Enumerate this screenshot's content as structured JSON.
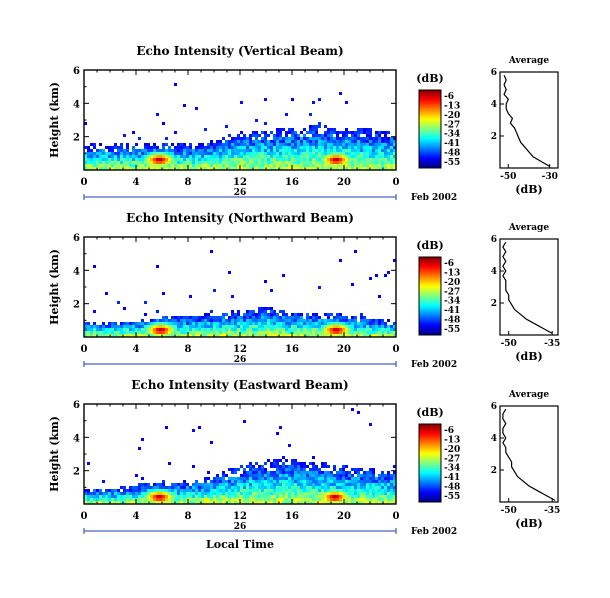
{
  "figure": {
    "xlabel": "Local Time",
    "date_label": "Feb 2002",
    "day_label": "26",
    "ylabel": "Height (km)"
  },
  "chart_data": [
    {
      "type": "heatmap",
      "title": "Echo Intensity (Vertical Beam)",
      "xlabel": "Local Time",
      "ylabel": "Height (km)",
      "x_ticks": [
        "0",
        "4",
        "8",
        "12",
        "16",
        "20",
        "0"
      ],
      "y_ticks": [
        "2",
        "4",
        "6"
      ],
      "xlim": [
        0,
        24
      ],
      "ylim": [
        0,
        6
      ],
      "colorbar": {
        "label": "(dB)",
        "ticks": [
          "-6",
          "-13",
          "-20",
          "-27",
          "-34",
          "-41",
          "-48",
          "-55"
        ],
        "range": [
          -55,
          -6
        ]
      },
      "echo_top_km": [
        [
          0,
          1.55
        ],
        [
          4,
          1.55
        ],
        [
          6,
          1.6
        ],
        [
          8,
          1.55
        ],
        [
          10,
          1.75
        ],
        [
          12,
          2.3
        ],
        [
          14,
          2.4
        ],
        [
          16,
          2.55
        ],
        [
          18,
          2.65
        ],
        [
          20,
          2.55
        ],
        [
          22,
          2.45
        ],
        [
          24,
          2.3
        ]
      ],
      "hot_spots": [
        {
          "time": 5.8,
          "height": 0.6,
          "dB": -6
        },
        {
          "time": 19.4,
          "height": 0.6,
          "dB": -6
        }
      ],
      "profile": {
        "title": "Average",
        "xlabel": "(dB)",
        "x_ticks": [
          "-50",
          "-30"
        ],
        "xlim": [
          -54,
          -26
        ],
        "y_ticks": [
          "2",
          "4",
          "6"
        ],
        "ylim": [
          0,
          6
        ],
        "height_km": [
          0.1,
          0.4,
          0.7,
          1.0,
          1.3,
          1.6,
          1.9,
          2.2,
          2.5,
          2.8,
          3.1,
          3.4,
          3.7,
          4.0,
          4.3,
          4.6,
          4.9,
          5.2,
          5.5,
          5.8
        ],
        "dB": [
          -30,
          -34,
          -38,
          -40,
          -42,
          -44,
          -45,
          -46,
          -47,
          -49,
          -48,
          -50,
          -51,
          -51,
          -50,
          -52,
          -51,
          -52,
          -51,
          -52
        ]
      }
    },
    {
      "type": "heatmap",
      "title": "Echo Intensity (Northward Beam)",
      "xlabel": "Local Time",
      "ylabel": "Height (km)",
      "x_ticks": [
        "0",
        "4",
        "8",
        "12",
        "16",
        "20",
        "0"
      ],
      "y_ticks": [
        "2",
        "4",
        "6"
      ],
      "xlim": [
        0,
        24
      ],
      "ylim": [
        0,
        6
      ],
      "colorbar": {
        "label": "(dB)",
        "ticks": [
          "-6",
          "-13",
          "-20",
          "-27",
          "-34",
          "-41",
          "-48",
          "-55"
        ],
        "range": [
          -55,
          -6
        ]
      },
      "echo_top_km": [
        [
          0,
          0.9
        ],
        [
          4,
          1.0
        ],
        [
          6,
          1.35
        ],
        [
          8,
          1.25
        ],
        [
          10,
          1.4
        ],
        [
          12,
          1.6
        ],
        [
          14,
          1.8
        ],
        [
          16,
          1.5
        ],
        [
          18,
          1.5
        ],
        [
          20,
          1.35
        ],
        [
          22,
          1.15
        ],
        [
          24,
          1.0
        ]
      ],
      "hot_spots": [
        {
          "time": 5.9,
          "height": 0.4,
          "dB": -6
        },
        {
          "time": 19.4,
          "height": 0.4,
          "dB": -6
        }
      ],
      "profile": {
        "title": "Average",
        "xlabel": "(dB)",
        "x_ticks": [
          "-50",
          "-35"
        ],
        "xlim": [
          -53,
          -33
        ],
        "y_ticks": [
          "2",
          "4",
          "6"
        ],
        "ylim": [
          0,
          6
        ],
        "height_km": [
          0.1,
          0.4,
          0.7,
          1.0,
          1.3,
          1.6,
          1.9,
          2.2,
          2.5,
          2.8,
          3.1,
          3.4,
          3.7,
          4.0,
          4.3,
          4.6,
          4.9,
          5.2,
          5.5,
          5.8
        ],
        "dB": [
          -35,
          -38,
          -41,
          -44,
          -46,
          -48,
          -49,
          -50,
          -50,
          -51,
          -51,
          -51,
          -52,
          -51,
          -52,
          -51,
          -52,
          -51,
          -52,
          -51
        ]
      }
    },
    {
      "type": "heatmap",
      "title": "Echo Intensity (Eastward Beam)",
      "xlabel": "Local Time",
      "ylabel": "Height (km)",
      "x_ticks": [
        "0",
        "4",
        "8",
        "12",
        "16",
        "20",
        "0"
      ],
      "y_ticks": [
        "2",
        "4",
        "6"
      ],
      "xlim": [
        0,
        24
      ],
      "ylim": [
        0,
        6
      ],
      "colorbar": {
        "label": "(dB)",
        "ticks": [
          "-6",
          "-13",
          "-20",
          "-27",
          "-34",
          "-41",
          "-48",
          "-55"
        ],
        "range": [
          -55,
          -6
        ]
      },
      "echo_top_km": [
        [
          0,
          0.95
        ],
        [
          3,
          1.0
        ],
        [
          5,
          1.4
        ],
        [
          7,
          1.3
        ],
        [
          9,
          1.5
        ],
        [
          11,
          2.0
        ],
        [
          13,
          2.5
        ],
        [
          15,
          2.7
        ],
        [
          17,
          2.6
        ],
        [
          19,
          2.4
        ],
        [
          21,
          2.2
        ],
        [
          24,
          2.0
        ]
      ],
      "hot_spots": [
        {
          "time": 5.8,
          "height": 0.4,
          "dB": -6
        },
        {
          "time": 19.3,
          "height": 0.4,
          "dB": -6
        }
      ],
      "profile": {
        "title": "Average",
        "xlabel": "(dB)",
        "x_ticks": [
          "-50",
          "-35"
        ],
        "xlim": [
          -53,
          -33
        ],
        "y_ticks": [
          "2",
          "4",
          "6"
        ],
        "ylim": [
          0,
          6
        ],
        "height_km": [
          0.1,
          0.4,
          0.7,
          1.0,
          1.3,
          1.6,
          1.9,
          2.2,
          2.5,
          2.8,
          3.1,
          3.4,
          3.7,
          4.0,
          4.3,
          4.6,
          4.9,
          5.2,
          5.5,
          5.8
        ],
        "dB": [
          -34,
          -37,
          -40,
          -43,
          -45,
          -47,
          -48,
          -49,
          -49,
          -50,
          -51,
          -51,
          -52,
          -51,
          -52,
          -52,
          -51,
          -52,
          -52,
          -51
        ]
      }
    }
  ]
}
